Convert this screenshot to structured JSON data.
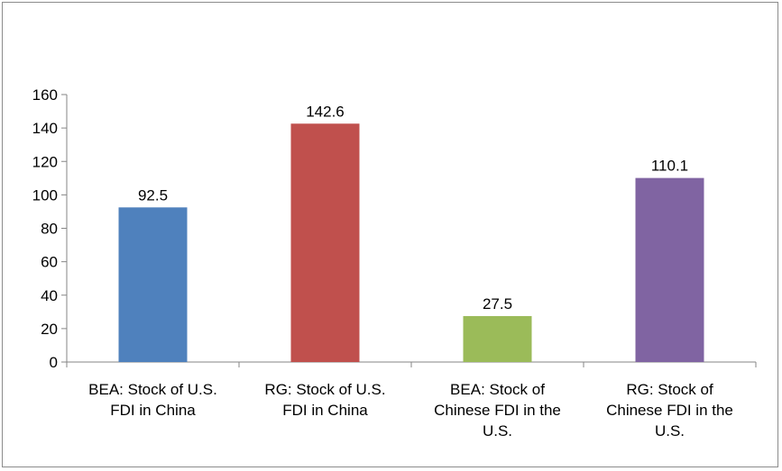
{
  "chart_data": {
    "type": "bar",
    "categories": [
      [
        "BEA: Stock of U.S.",
        "FDI in China"
      ],
      [
        "RG: Stock of U.S.",
        "FDI in China"
      ],
      [
        "BEA: Stock of",
        "Chinese FDI in the",
        "U.S."
      ],
      [
        "RG: Stock of",
        "Chinese FDI in the",
        "U.S."
      ]
    ],
    "values": [
      92.5,
      142.6,
      27.5,
      110.1
    ],
    "value_labels": [
      "92.5",
      "142.6",
      "27.5",
      "110.1"
    ],
    "colors": [
      "#4f81bd",
      "#c0504d",
      "#9bbb59",
      "#8064a2"
    ],
    "ylim": [
      0,
      160
    ],
    "yticks": [
      0,
      20,
      40,
      60,
      80,
      100,
      120,
      140,
      160
    ],
    "grid": false,
    "legend": "none",
    "title": "",
    "xlabel": "",
    "ylabel": ""
  }
}
